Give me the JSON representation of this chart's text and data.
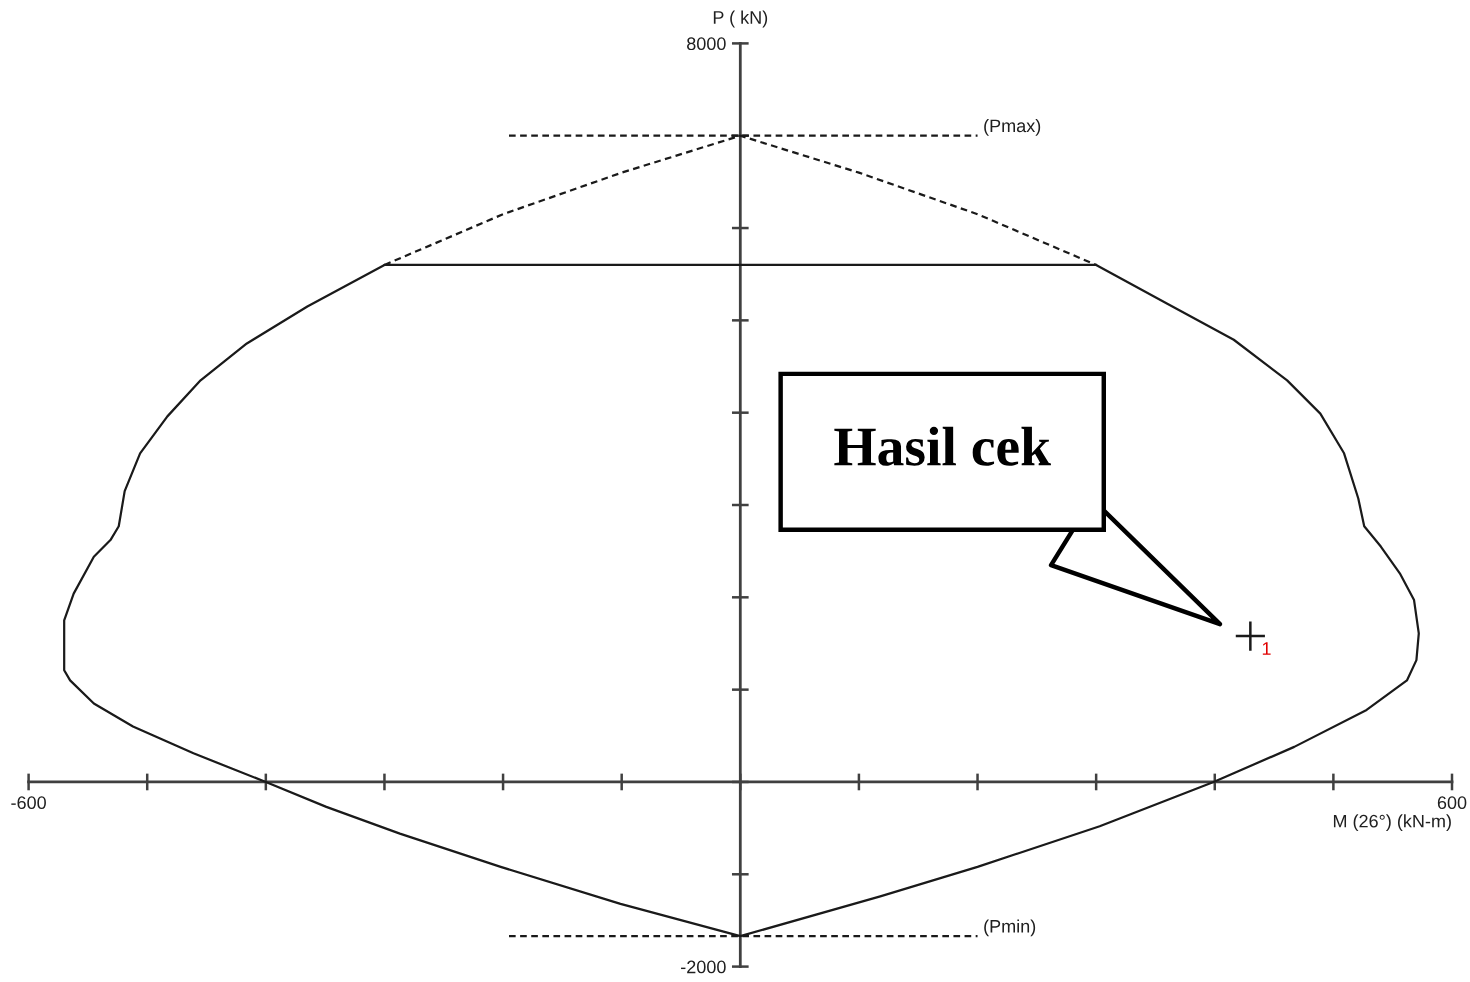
{
  "chart_data": {
    "type": "line",
    "xlabel": "M (26°) (kN-m)",
    "ylabel": "P ( kN)",
    "xlim": [
      -600,
      600
    ],
    "xticks": [
      -600,
      {
        "value": -500,
        "label": null
      },
      {
        "value": -400,
        "label": null
      },
      {
        "value": -300,
        "label": null
      },
      {
        "value": -200,
        "label": null
      },
      {
        "value": -100,
        "label": null
      },
      {
        "value": 0,
        "label": null
      },
      {
        "value": 100,
        "label": null
      },
      {
        "value": 200,
        "label": null
      },
      {
        "value": 300,
        "label": null
      },
      {
        "value": 400,
        "label": null
      },
      {
        "value": 500,
        "label": null
      },
      600
    ],
    "ylim": [
      -2000,
      8000
    ],
    "yticks": [
      -2000,
      {
        "value": -1000,
        "label": null
      },
      {
        "value": 0,
        "label": null
      },
      {
        "value": 1000,
        "label": null
      },
      {
        "value": 2000,
        "label": null
      },
      {
        "value": 3000,
        "label": null
      },
      {
        "value": 4000,
        "label": null
      },
      {
        "value": 5000,
        "label": null
      },
      {
        "value": 6000,
        "label": null
      },
      {
        "value": 7000,
        "label": null
      },
      8000
    ],
    "grid": false,
    "series": [
      {
        "color": "#1a1a1a",
        "line_style": "solid",
        "x": [
          -300,
          -365,
          -416,
          -455,
          -483,
          -506,
          -519,
          -524,
          -531,
          -545,
          -562,
          -570,
          -570,
          -565,
          -545,
          -512,
          -461,
          -400,
          -349,
          -287,
          -202,
          -101,
          0,
          118,
          200,
          303,
          399,
          467,
          528,
          562,
          570,
          572,
          568,
          556,
          540,
          526,
          521,
          509,
          489,
          461,
          416,
          360,
          300
        ],
        "values": [
          5600,
          5150,
          4750,
          4350,
          3960,
          3560,
          3150,
          2770,
          2620,
          2440,
          2040,
          1750,
          1210,
          1100,
          850,
          600,
          310,
          0,
          -270,
          -560,
          -920,
          -1320,
          -1670,
          -1240,
          -920,
          -480,
          0,
          380,
          780,
          1100,
          1320,
          1610,
          1970,
          2260,
          2550,
          2770,
          3070,
          3560,
          3990,
          4350,
          4790,
          5180,
          5600
        ]
      },
      {
        "color": "#1a1a1a",
        "line_style": "solid",
        "x": [
          -300,
          300
        ],
        "values": [
          5600,
          5600
        ]
      },
      {
        "color": "#1a1a1a",
        "line_style": "dashed",
        "x": [
          -300,
          -200,
          -100,
          0,
          100,
          200,
          300
        ],
        "values": [
          5600,
          6150,
          6600,
          7000,
          6600,
          6150,
          5600
        ]
      },
      {
        "name": "(Pmax)",
        "color": "#1a1a1a",
        "line_style": "dashed",
        "x": [
          -195,
          200
        ],
        "values": [
          7000,
          7000
        ]
      },
      {
        "name": "(Pmin)",
        "color": "#1a1a1a",
        "line_style": "dashed",
        "x": [
          -195,
          200
        ],
        "values": [
          -1670,
          -1670
        ]
      },
      {
        "name": "1",
        "type": "scatter",
        "color": "#1a1a1a",
        "marker": "cross",
        "x": [
          430
        ],
        "values": [
          1580
        ]
      }
    ],
    "annotations": [
      "Hasil cek"
    ]
  }
}
